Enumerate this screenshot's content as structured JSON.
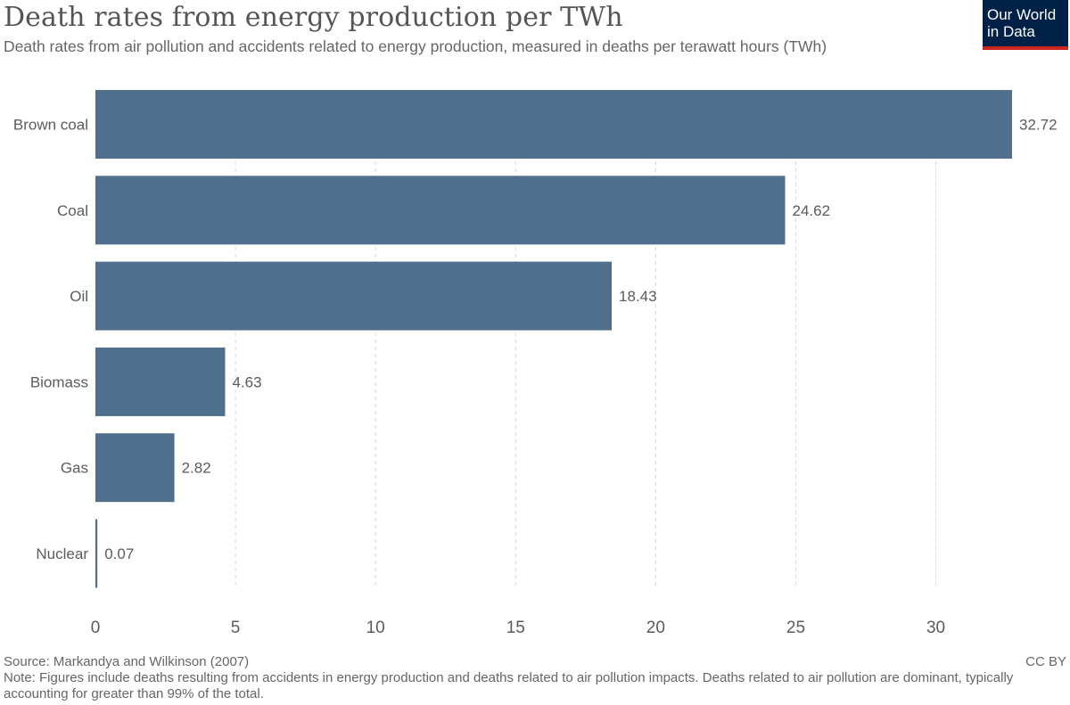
{
  "header": {
    "title": "Death rates from energy production per TWh",
    "subtitle": "Death rates from air pollution and accidents related to energy production, measured in deaths per terawatt hours (TWh)"
  },
  "logo": {
    "line1": "Our World",
    "line2": "in Data"
  },
  "footer": {
    "source": "Source: Markandya and Wilkinson (2007)",
    "license": "CC BY",
    "note": "Note: Figures include deaths resulting from accidents in energy production and deaths related to air pollution impacts. Deaths related to air pollution are dominant, typically accounting for greater than 99% of the total."
  },
  "colors": {
    "bar": "#4f6f8c",
    "logo_background": "#002147",
    "logo_accent": "#ce261e",
    "gridline": "#d9d9d9",
    "text": "#5b5b5b"
  },
  "chart_data": {
    "type": "bar",
    "orientation": "horizontal",
    "title": "Death rates from energy production per TWh",
    "categories": [
      "Brown coal",
      "Coal",
      "Oil",
      "Biomass",
      "Gas",
      "Nuclear"
    ],
    "values": [
      32.72,
      24.62,
      18.43,
      4.63,
      2.82,
      0.07
    ],
    "value_labels": [
      "32.72",
      "24.62",
      "18.43",
      "4.63",
      "2.82",
      "0.07"
    ],
    "xlim": [
      0,
      32.72
    ],
    "xticks": [
      0,
      5,
      10,
      15,
      20,
      25,
      30
    ],
    "xtick_labels": [
      "0",
      "5",
      "10",
      "15",
      "20",
      "25",
      "30"
    ],
    "xlabel": "",
    "ylabel": "",
    "grid": "vertical dashed",
    "legend": "none"
  }
}
